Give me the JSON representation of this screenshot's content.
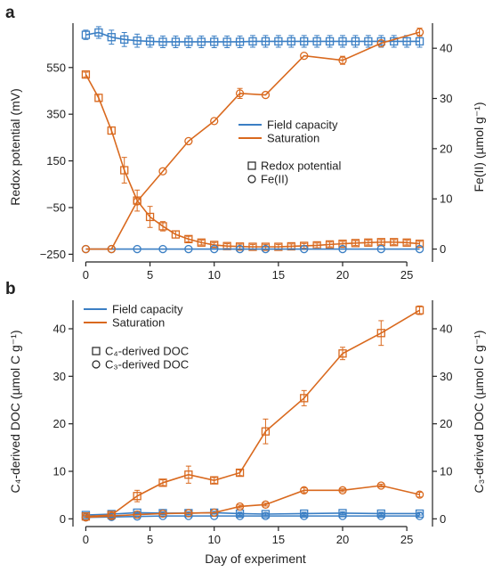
{
  "colors": {
    "field": "#3b7fc4",
    "saturation": "#d9691e",
    "axis": "#222222"
  },
  "chart_data": [
    {
      "panel": "a",
      "type": "line",
      "xlabel": "",
      "ylabel_left": "Redox potential (mV)",
      "ylabel_right": "Fe(II)  (µmol g⁻¹)",
      "xlim": [
        -1,
        27
      ],
      "ylim_left": [
        -260,
        740
      ],
      "ylim_right": [
        -1.5,
        45
      ],
      "xticks": [
        0,
        5,
        10,
        15,
        20,
        25
      ],
      "yticks_left": [
        -250,
        -50,
        150,
        350,
        550
      ],
      "yticks_right": [
        0,
        10,
        20,
        30,
        40
      ],
      "legend_lines": [
        "Field capacity",
        "Saturation"
      ],
      "legend_markers": [
        "Redox potential",
        "Fe(II)"
      ],
      "legend_placement": "center-right",
      "series": [
        {
          "name": "Field capacity",
          "marker": "square",
          "axis": "left",
          "color": "field",
          "x": [
            0,
            1,
            2,
            3,
            4,
            5,
            6,
            7,
            8,
            9,
            10,
            11,
            12,
            13,
            14,
            15,
            16,
            17,
            18,
            19,
            20,
            21,
            22,
            23,
            24,
            25,
            26
          ],
          "y": [
            690,
            700,
            680,
            670,
            665,
            662,
            660,
            660,
            660,
            660,
            660,
            660,
            660,
            662,
            662,
            662,
            662,
            662,
            662,
            662,
            662,
            662,
            662,
            662,
            662,
            662,
            662
          ],
          "err": [
            20,
            25,
            30,
            30,
            28,
            25,
            25,
            25,
            25,
            25,
            25,
            25,
            25,
            25,
            25,
            25,
            25,
            25,
            25,
            25,
            25,
            25,
            25,
            25,
            25,
            25,
            25
          ]
        },
        {
          "name": "Saturation",
          "marker": "square",
          "axis": "left",
          "color": "saturation",
          "x": [
            0,
            1,
            2,
            3,
            4,
            5,
            6,
            7,
            8,
            9,
            10,
            11,
            12,
            13,
            14,
            15,
            16,
            17,
            18,
            19,
            20,
            21,
            22,
            23,
            24,
            25,
            26
          ],
          "y": [
            520,
            420,
            280,
            110,
            -20,
            -90,
            -130,
            -165,
            -185,
            -200,
            -210,
            -215,
            -217,
            -218,
            -218,
            -218,
            -216,
            -214,
            -212,
            -208,
            -205,
            -202,
            -200,
            -198,
            -198,
            -200,
            -205
          ],
          "err": [
            10,
            15,
            15,
            55,
            45,
            45,
            20,
            15,
            12,
            10,
            10,
            10,
            10,
            10,
            10,
            10,
            10,
            10,
            10,
            10,
            10,
            10,
            10,
            10,
            10,
            10,
            10
          ]
        },
        {
          "name": "Field capacity",
          "marker": "circle",
          "axis": "right",
          "color": "field",
          "x": [
            0,
            2,
            4,
            6,
            8,
            10,
            12,
            14,
            17,
            20,
            23,
            26
          ],
          "y": [
            0,
            0,
            0,
            0,
            0,
            0,
            0,
            0,
            0,
            0,
            0,
            0
          ],
          "err": []
        },
        {
          "name": "Saturation",
          "marker": "circle",
          "axis": "right",
          "color": "saturation",
          "x": [
            0,
            2,
            4,
            6,
            8,
            10,
            12,
            14,
            17,
            20,
            23,
            26
          ],
          "y": [
            0,
            0,
            9.5,
            15.5,
            21.5,
            25.5,
            31,
            30.7,
            38.5,
            37.6,
            41,
            43.2
          ],
          "err": [
            0,
            0,
            0,
            0,
            0,
            0,
            1,
            0,
            0,
            0.8,
            0,
            0.8
          ]
        }
      ]
    },
    {
      "panel": "b",
      "type": "line",
      "xlabel": "Day of experiment",
      "ylabel_left": "C₄-derived DOC  (µmol C g⁻¹)",
      "ylabel_right": "C₃-derived DOC  (µmol C g⁻¹)",
      "xlim": [
        -1,
        27
      ],
      "ylim_left": [
        -0.5,
        46
      ],
      "ylim_right": [
        -0.5,
        46
      ],
      "xticks": [
        0,
        5,
        10,
        15,
        20,
        25
      ],
      "yticks_left": [
        0,
        10,
        20,
        30,
        40
      ],
      "yticks_right": [
        0,
        10,
        20,
        30,
        40
      ],
      "legend_lines": [
        "Field capacity",
        "Saturation"
      ],
      "legend_markers": [
        "C₄-derived DOC",
        "C₃-derived DOC"
      ],
      "legend_placement": "top-left",
      "series": [
        {
          "name": "Field capacity",
          "marker": "square",
          "axis": "left",
          "color": "field",
          "x": [
            0,
            2,
            4,
            6,
            8,
            10,
            12,
            14,
            17,
            20,
            23,
            26
          ],
          "y": [
            0.8,
            1.0,
            1.3,
            1.2,
            1.2,
            1.3,
            1.1,
            1.0,
            1.1,
            1.2,
            1.1,
            1.1
          ],
          "err": [
            0.3,
            0.3,
            0.3,
            0.3,
            0.3,
            0.3,
            0.3,
            0.3,
            0.3,
            0.3,
            0.3,
            0.3
          ]
        },
        {
          "name": "Saturation",
          "marker": "square",
          "axis": "left",
          "color": "saturation",
          "x": [
            0,
            2,
            4,
            6,
            8,
            10,
            12,
            14,
            17,
            20,
            23,
            26
          ],
          "y": [
            0.5,
            0.8,
            4.8,
            7.6,
            9.3,
            8.1,
            9.7,
            18.4,
            25.4,
            34.8,
            39.1,
            43.9
          ],
          "err": [
            0.2,
            0.3,
            1.2,
            0.6,
            1.8,
            0.6,
            0.6,
            2.6,
            1.6,
            1.3,
            2.6,
            0.9
          ]
        },
        {
          "name": "Field capacity",
          "marker": "circle",
          "axis": "right",
          "color": "field",
          "x": [
            0,
            2,
            4,
            6,
            8,
            10,
            12,
            14,
            17,
            20,
            23,
            26
          ],
          "y": [
            0.3,
            0.4,
            0.5,
            0.6,
            0.6,
            0.6,
            0.6,
            0.6,
            0.6,
            0.6,
            0.6,
            0.6
          ],
          "err": []
        },
        {
          "name": "Saturation",
          "marker": "circle",
          "axis": "right",
          "color": "saturation",
          "x": [
            0,
            2,
            4,
            6,
            8,
            10,
            12,
            14,
            17,
            20,
            23,
            26
          ],
          "y": [
            0.3,
            0.6,
            0.9,
            1.1,
            1.2,
            1.3,
            2.6,
            3.0,
            6.0,
            6.0,
            7.0,
            5.1
          ],
          "err": [
            0,
            0,
            0,
            0,
            0,
            0,
            0.3,
            0.3,
            0.5,
            0.3,
            0.3,
            0.5
          ]
        }
      ]
    }
  ]
}
